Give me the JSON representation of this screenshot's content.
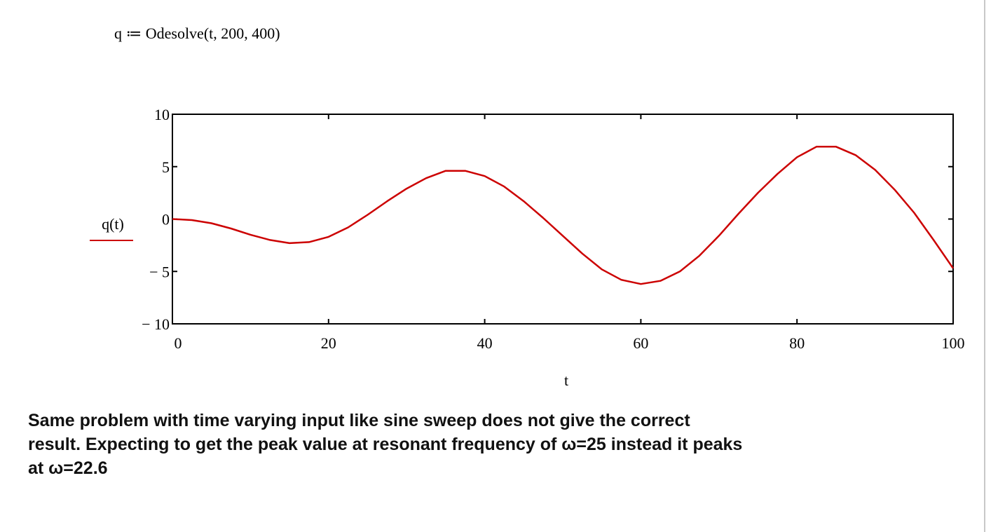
{
  "expression": "q ≔ Odesolve(t, 200, 400)",
  "chart_data": {
    "type": "line",
    "xlabel": "t",
    "x": [
      0,
      2.5,
      5,
      7.5,
      10,
      12.5,
      15,
      17.5,
      20,
      22.5,
      25,
      27.5,
      30,
      32.5,
      35,
      37.5,
      40,
      42.5,
      45,
      47.5,
      50,
      52.5,
      55,
      57.5,
      60,
      62.5,
      65,
      67.5,
      70,
      72.5,
      75,
      77.5,
      80,
      82.5,
      85,
      87.5,
      90,
      92.5,
      95,
      97.5,
      100
    ],
    "series": [
      {
        "name": "q(t)",
        "color": "#cc0000",
        "values": [
          0,
          -0.1,
          -0.4,
          -0.9,
          -1.5,
          -2.0,
          -2.3,
          -2.2,
          -1.7,
          -0.8,
          0.4,
          1.7,
          2.9,
          3.9,
          4.6,
          4.6,
          4.1,
          3.1,
          1.7,
          0.1,
          -1.6,
          -3.3,
          -4.8,
          -5.8,
          -6.2,
          -5.9,
          -5.0,
          -3.5,
          -1.6,
          0.5,
          2.5,
          4.3,
          5.9,
          6.9,
          6.9,
          6.1,
          4.7,
          2.8,
          0.6,
          -2.0,
          -4.7
        ]
      }
    ],
    "xlim": [
      0,
      100
    ],
    "ylim": [
      -10,
      10
    ],
    "xticks": [
      0,
      20,
      40,
      60,
      80,
      100
    ],
    "yticks": [
      {
        "value": -10,
        "label": "− 10"
      },
      {
        "value": -5,
        "label": "− 5"
      },
      0,
      5,
      10
    ]
  },
  "paragraph": [
    "Same problem with time varying input like sine sweep does not give the correct",
    "result. Expecting to get the peak value at resonant frequency of ω=25 instead it peaks",
    "at ω=22.6"
  ]
}
